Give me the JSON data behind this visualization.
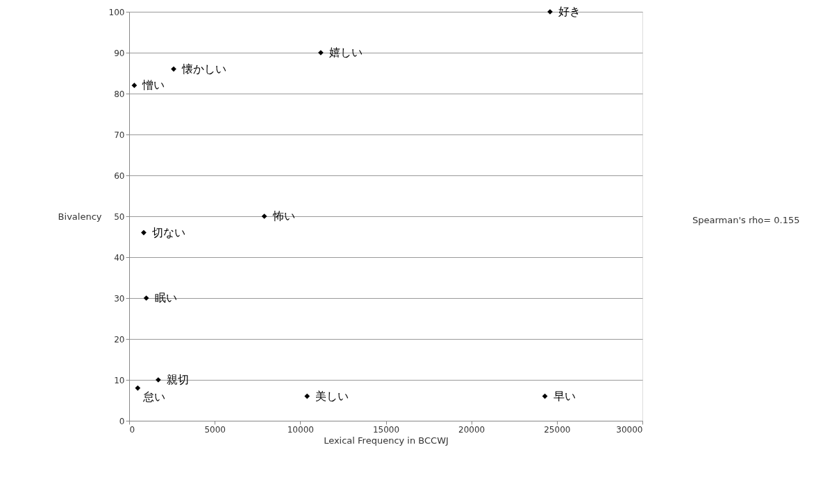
{
  "chart_data": {
    "type": "scatter",
    "xlabel": "Lexical Frequency in BCCWJ",
    "ylabel": "Bivalency",
    "x": [
      24600,
      11200,
      2600,
      300,
      7900,
      850,
      1000,
      1700,
      500,
      10400,
      24300
    ],
    "series": [
      {
        "color": "#000000",
        "values": [
          100,
          90,
          86,
          82,
          50,
          46,
          30,
          10,
          8,
          6,
          6
        ]
      }
    ],
    "xlim": [
      0,
      30000
    ],
    "xticks": [
      0,
      5000,
      10000,
      15000,
      20000,
      25000,
      30000
    ],
    "ylim": [
      0,
      100
    ],
    "yticks": [
      0,
      10,
      20,
      30,
      40,
      50,
      60,
      70,
      80,
      90,
      100
    ],
    "grid": "y",
    "marker": "diamond",
    "annotations": [
      {
        "text": "好き",
        "x": 24600,
        "y": 100
      },
      {
        "text": "嬉しい",
        "x": 11200,
        "y": 90
      },
      {
        "text": "懐かしい",
        "x": 2600,
        "y": 86
      },
      {
        "text": "憎い",
        "x": 300,
        "y": 82
      },
      {
        "text": "怖い",
        "x": 7900,
        "y": 50
      },
      {
        "text": "切ない",
        "x": 850,
        "y": 46
      },
      {
        "text": "眠い",
        "x": 1000,
        "y": 30
      },
      {
        "text": "親切",
        "x": 1700,
        "y": 10
      },
      {
        "text": "怠い",
        "x": 500,
        "y": 8
      },
      {
        "text": "美しい",
        "x": 10400,
        "y": 6
      },
      {
        "text": "早い",
        "x": 24300,
        "y": 6
      },
      "Spearman's rho= 0.155"
    ]
  }
}
